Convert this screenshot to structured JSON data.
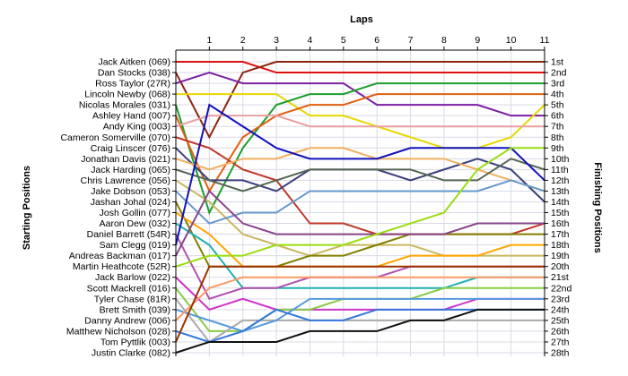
{
  "chart_data": {
    "type": "line",
    "title": "Laps",
    "left_axis_title": "Starting Positions",
    "right_axis_title": "Finishing Positions",
    "laps": [
      "1",
      "2",
      "3",
      "4",
      "5",
      "6",
      "7",
      "8",
      "9",
      "10",
      "11"
    ],
    "starting_grid": [
      "Jack Aitken (069)",
      "Dan Stocks (038)",
      "Ross Taylor (27R)",
      "Lincoln Newby (068)",
      "Nicolas Morales (031)",
      "Ashley Hand (007)",
      "Andy King (003)",
      "Cameron Somerville (070)",
      "Craig Linscer (076)",
      "Jonathan Davis (021)",
      "Jack Harding (065)",
      "Chris Lawrence (056)",
      "Jake Dobson (053)",
      "Jashan Johal (024)",
      "Josh Gollin (077)",
      "Aaron Dew (032)",
      "Daniel Barrett (54R)",
      "Sam Clegg (019)",
      "Andreas Backman (017)",
      "Martin Heathcote (52R)",
      "Jack Barlow (022)",
      "Scott Mackrell (016)",
      "Tyler Chase (81R)",
      "Brett Smith (039)",
      "Danny Andrew (006)",
      "Matthew Nicholson (028)",
      "Tom Pyttlik (003)",
      "Justin Clarke (082)"
    ],
    "finishing_positions": [
      "1st",
      "2nd",
      "3rd",
      "4th",
      "5th",
      "6th",
      "7th",
      "8th",
      "9th",
      "10th",
      "11th",
      "12th",
      "13th",
      "14th",
      "15th",
      "16th",
      "17th",
      "18th",
      "19th",
      "20th",
      "21st",
      "22nd",
      "23rd",
      "24th",
      "25th",
      "26th",
      "27th",
      "28th"
    ],
    "series": [
      {
        "color": "#dd1111",
        "positions": [
          1,
          1,
          1,
          2,
          2,
          2,
          2,
          2,
          2,
          2,
          2,
          2
        ]
      },
      {
        "color": "#8b2510",
        "positions": [
          2,
          8,
          2,
          1,
          1,
          1,
          1,
          1,
          1,
          1,
          1,
          1
        ]
      },
      {
        "color": "#7b1fa2",
        "positions": [
          3,
          2,
          3,
          3,
          3,
          3,
          5,
          5,
          5,
          5,
          6,
          6
        ]
      },
      {
        "color": "#e6d800",
        "positions": [
          4,
          4,
          4,
          4,
          6,
          6,
          7,
          8,
          9,
          9,
          8,
          5
        ]
      },
      {
        "color": "#1a9e2c",
        "positions": [
          5,
          15,
          9,
          5,
          4,
          4,
          3,
          3,
          3,
          3,
          3,
          3
        ]
      },
      {
        "color": "#e06010",
        "positions": [
          6,
          13,
          8,
          6,
          5,
          5,
          4,
          4,
          4,
          4,
          4,
          4
        ]
      },
      {
        "color": "#e8a0a0",
        "positions": [
          7,
          6,
          6,
          6,
          7,
          7,
          7,
          7,
          7,
          7,
          7,
          7
        ]
      },
      {
        "color": "#c0392b",
        "positions": [
          8,
          9,
          11,
          12,
          16,
          16,
          17,
          17,
          17,
          17,
          17,
          16
        ]
      },
      {
        "color": "#3a3f7a",
        "positions": [
          9,
          12,
          12,
          13,
          11,
          11,
          11,
          12,
          11,
          10,
          11,
          14
        ]
      },
      {
        "color": "#f0b060",
        "positions": [
          10,
          11,
          10,
          10,
          9,
          9,
          10,
          10,
          10,
          11,
          12,
          13
        ]
      },
      {
        "color": "#556655",
        "positions": [
          11,
          12,
          13,
          12,
          11,
          11,
          11,
          11,
          12,
          12,
          10,
          11
        ]
      },
      {
        "color": "#c8b860",
        "positions": [
          12,
          14,
          17,
          18,
          19,
          18,
          18,
          18,
          19,
          19,
          19,
          19
        ]
      },
      {
        "color": "#6699cc",
        "positions": [
          13,
          16,
          15,
          15,
          13,
          13,
          13,
          13,
          13,
          13,
          12,
          13
        ]
      },
      {
        "color": "#808000",
        "positions": [
          14,
          20,
          20,
          20,
          19,
          19,
          18,
          17,
          17,
          17,
          17,
          17
        ]
      },
      {
        "color": "#ffa500",
        "positions": [
          15,
          17,
          20,
          20,
          20,
          20,
          20,
          19,
          19,
          19,
          18,
          18
        ]
      },
      {
        "color": "#20b0b0",
        "positions": [
          16,
          18,
          22,
          22,
          22,
          22,
          22,
          22,
          22,
          21,
          21,
          21
        ]
      },
      {
        "color": "#b050b0",
        "positions": [
          17,
          23,
          22,
          22,
          21,
          21,
          21,
          20,
          20,
          20,
          20,
          20
        ]
      },
      {
        "color": "#1111bb",
        "positions": [
          18,
          5,
          7,
          9,
          10,
          10,
          10,
          9,
          9,
          9,
          9,
          12
        ]
      },
      {
        "color": "#884488",
        "positions": [
          19,
          13,
          16,
          17,
          17,
          17,
          17,
          17,
          17,
          16,
          16,
          16
        ]
      },
      {
        "color": "#99dd11",
        "positions": [
          20,
          19,
          19,
          18,
          18,
          18,
          17,
          16,
          15,
          11,
          9,
          9
        ]
      },
      {
        "color": "#cc33cc",
        "positions": [
          21,
          24,
          23,
          24,
          24,
          24,
          24,
          24,
          24,
          23,
          23,
          23
        ]
      },
      {
        "color": "#88cc44",
        "positions": [
          22,
          26,
          26,
          24,
          24,
          23,
          23,
          23,
          22,
          22,
          22,
          22
        ]
      },
      {
        "color": "#aaaaaa",
        "positions": [
          23,
          27,
          25,
          25,
          25,
          25,
          25,
          25,
          25,
          25,
          25,
          25
        ]
      },
      {
        "color": "#5599dd",
        "positions": [
          24,
          25,
          26,
          25,
          23,
          23,
          23,
          23,
          23,
          23,
          23,
          23
        ]
      },
      {
        "color": "#ff9966",
        "positions": [
          25,
          22,
          21,
          21,
          21,
          21,
          21,
          21,
          21,
          21,
          21,
          21
        ]
      },
      {
        "color": "#3377dd",
        "positions": [
          26,
          27,
          26,
          24,
          25,
          25,
          24,
          24,
          24,
          24,
          24,
          24
        ]
      },
      {
        "color": "#993300",
        "positions": [
          27,
          20,
          20,
          20,
          20,
          20,
          20,
          20,
          20,
          20,
          20,
          20
        ]
      },
      {
        "color": "#111111",
        "positions": [
          28,
          27,
          27,
          27,
          26,
          26,
          26,
          25,
          25,
          24,
          24,
          24
        ]
      }
    ]
  }
}
